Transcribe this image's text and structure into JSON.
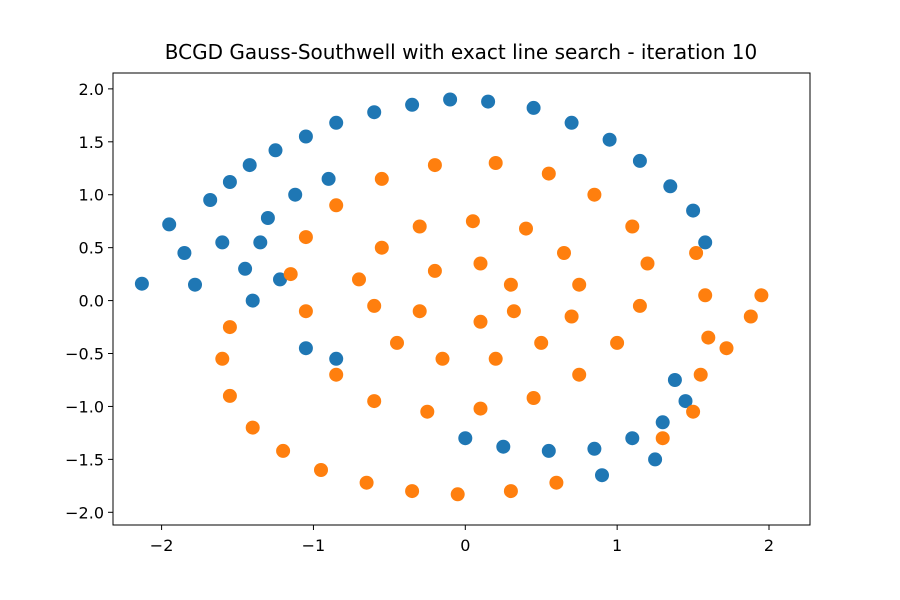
{
  "chart_data": {
    "type": "scatter",
    "title": "BCGD Gauss-Southwell with exact line search - iteration 10",
    "xlabel": "",
    "ylabel": "",
    "xlim": [
      -2.32,
      2.27
    ],
    "ylim": [
      -2.12,
      2.15
    ],
    "xticks": [
      -2,
      -1,
      0,
      1,
      2
    ],
    "xtick_labels": [
      "−2",
      "−1",
      "0",
      "1",
      "2"
    ],
    "yticks": [
      -2.0,
      -1.5,
      -1.0,
      -0.5,
      0.0,
      0.5,
      1.0,
      1.5,
      2.0
    ],
    "ytick_labels": [
      "−2.0",
      "−1.5",
      "−1.0",
      "−0.5",
      "0.0",
      "0.5",
      "1.0",
      "1.5",
      "2.0"
    ],
    "grid": false,
    "legend": "none",
    "series": [
      {
        "color": "#1f77b4",
        "points": [
          [
            -2.13,
            0.16
          ],
          [
            -1.95,
            0.72
          ],
          [
            -1.85,
            0.45
          ],
          [
            -1.78,
            0.15
          ],
          [
            -1.68,
            0.95
          ],
          [
            -1.55,
            1.12
          ],
          [
            -1.42,
            1.28
          ],
          [
            -1.25,
            1.42
          ],
          [
            -1.05,
            1.55
          ],
          [
            -0.85,
            1.68
          ],
          [
            -0.6,
            1.78
          ],
          [
            -0.35,
            1.85
          ],
          [
            -0.1,
            1.9
          ],
          [
            0.15,
            1.88
          ],
          [
            0.45,
            1.82
          ],
          [
            0.7,
            1.68
          ],
          [
            0.95,
            1.52
          ],
          [
            1.15,
            1.32
          ],
          [
            1.35,
            1.08
          ],
          [
            1.5,
            0.85
          ],
          [
            1.58,
            0.55
          ],
          [
            -1.6,
            0.55
          ],
          [
            -1.45,
            0.3
          ],
          [
            -1.4,
            0.0
          ],
          [
            -1.3,
            0.78
          ],
          [
            -1.12,
            1.0
          ],
          [
            -0.9,
            1.15
          ],
          [
            -1.35,
            0.55
          ],
          [
            -1.22,
            0.2
          ],
          [
            -1.05,
            -0.45
          ],
          [
            -0.85,
            -0.55
          ],
          [
            0.0,
            -1.3
          ],
          [
            0.25,
            -1.38
          ],
          [
            0.55,
            -1.42
          ],
          [
            0.85,
            -1.4
          ],
          [
            1.1,
            -1.3
          ],
          [
            1.3,
            -1.15
          ],
          [
            1.45,
            -0.95
          ],
          [
            0.9,
            -1.65
          ],
          [
            1.25,
            -1.5
          ],
          [
            1.38,
            -0.75
          ]
        ]
      },
      {
        "color": "#ff7f0e",
        "points": [
          [
            -1.55,
            -0.25
          ],
          [
            -1.6,
            -0.55
          ],
          [
            -1.55,
            -0.9
          ],
          [
            -1.4,
            -1.2
          ],
          [
            -1.2,
            -1.42
          ],
          [
            -0.95,
            -1.6
          ],
          [
            -0.65,
            -1.72
          ],
          [
            -0.35,
            -1.8
          ],
          [
            -0.05,
            -1.83
          ],
          [
            0.3,
            -1.8
          ],
          [
            0.6,
            -1.72
          ],
          [
            1.3,
            -1.3
          ],
          [
            1.5,
            -1.05
          ],
          [
            1.55,
            -0.7
          ],
          [
            1.6,
            -0.35
          ],
          [
            1.58,
            0.05
          ],
          [
            1.52,
            0.45
          ],
          [
            1.72,
            -0.45
          ],
          [
            1.88,
            -0.15
          ],
          [
            1.95,
            0.05
          ],
          [
            -1.05,
            -0.1
          ],
          [
            -1.15,
            0.25
          ],
          [
            -1.05,
            0.6
          ],
          [
            -0.85,
            0.9
          ],
          [
            -0.55,
            1.15
          ],
          [
            -0.2,
            1.28
          ],
          [
            0.2,
            1.3
          ],
          [
            0.55,
            1.2
          ],
          [
            0.85,
            1.0
          ],
          [
            1.1,
            0.7
          ],
          [
            1.2,
            0.35
          ],
          [
            1.15,
            -0.05
          ],
          [
            1.0,
            -0.4
          ],
          [
            0.75,
            -0.7
          ],
          [
            0.45,
            -0.92
          ],
          [
            0.1,
            -1.02
          ],
          [
            -0.25,
            -1.05
          ],
          [
            -0.6,
            -0.95
          ],
          [
            -0.85,
            -0.7
          ],
          [
            -0.7,
            0.2
          ],
          [
            -0.55,
            0.5
          ],
          [
            -0.3,
            0.7
          ],
          [
            0.05,
            0.75
          ],
          [
            0.4,
            0.68
          ],
          [
            0.65,
            0.45
          ],
          [
            0.75,
            0.15
          ],
          [
            0.7,
            -0.15
          ],
          [
            0.5,
            -0.4
          ],
          [
            0.2,
            -0.55
          ],
          [
            -0.15,
            -0.55
          ],
          [
            -0.45,
            -0.4
          ],
          [
            -0.6,
            -0.05
          ],
          [
            -0.3,
            -0.1
          ],
          [
            -0.2,
            0.28
          ],
          [
            0.1,
            0.35
          ],
          [
            0.3,
            0.15
          ],
          [
            0.32,
            -0.1
          ],
          [
            0.1,
            -0.2
          ]
        ]
      }
    ]
  }
}
